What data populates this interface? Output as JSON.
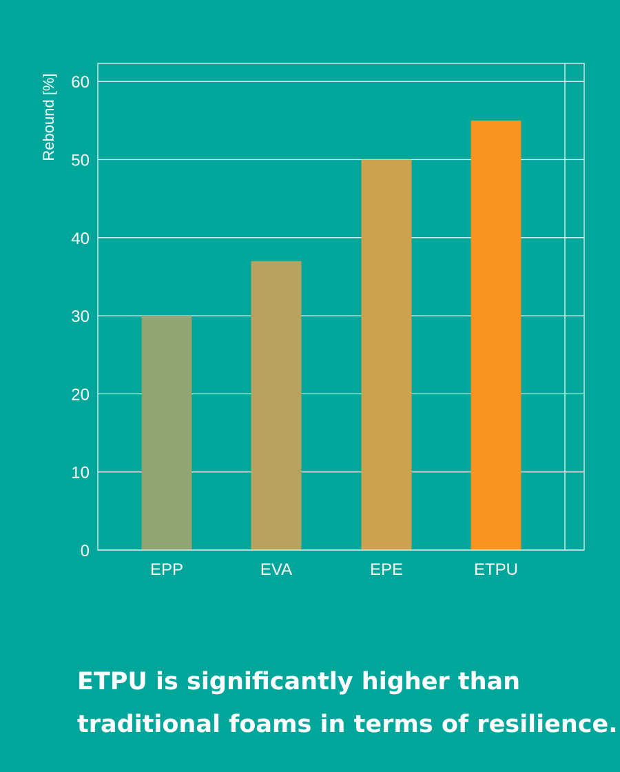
{
  "chart_data": {
    "type": "bar",
    "categories": [
      "EPP",
      "EVA",
      "EPE",
      "ETPU"
    ],
    "values": [
      30,
      37,
      50,
      55
    ],
    "colors": [
      "#93a473",
      "#b7a35e",
      "#cca14f",
      "#f7931e"
    ],
    "ylabel": "Rebound [%]",
    "xlabel": "",
    "ylim": [
      0,
      62.5
    ],
    "yticks": [
      0,
      10,
      20,
      30,
      40,
      50,
      60
    ],
    "grid": true
  },
  "caption": {
    "line1": "ETPU is significantly higher than",
    "line2": "traditional foams in terms of resilience."
  },
  "colors": {
    "background": "#00a69a",
    "gridline": "#e6f4f2"
  }
}
